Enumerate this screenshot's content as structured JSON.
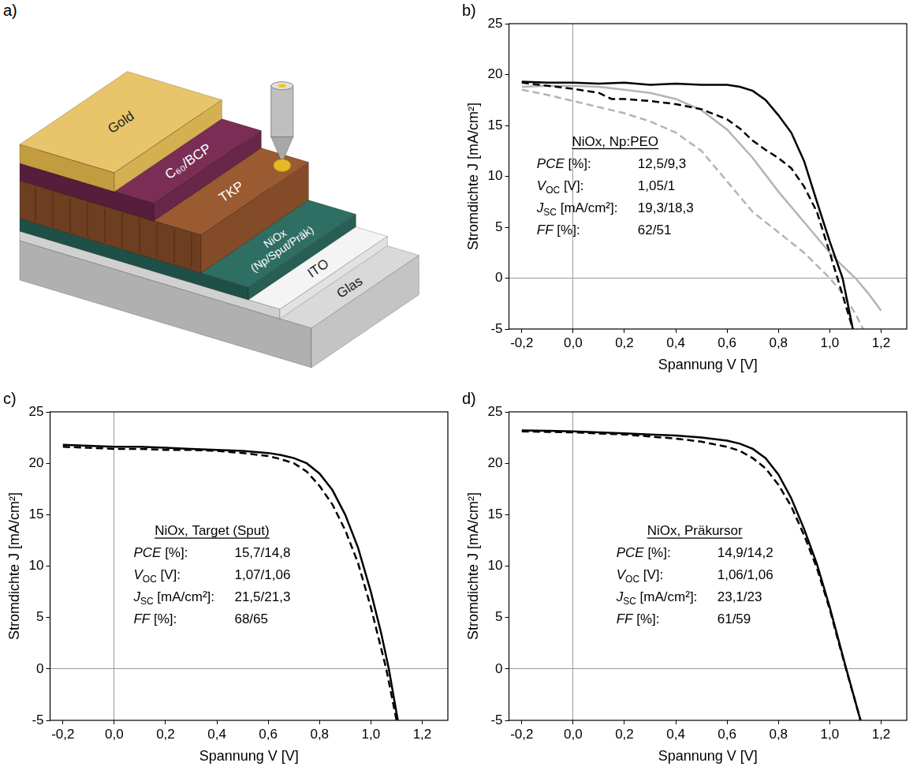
{
  "diagram": {
    "label": "a)",
    "layers": [
      {
        "text": [
          "Glas"
        ]
      },
      {
        "text": [
          "ITO"
        ]
      },
      {
        "text": [
          "NiOx",
          "(Np/Sput/Präk)"
        ]
      },
      {
        "text": [
          "TKP"
        ]
      },
      {
        "text": [
          "C₆₀/BCP"
        ]
      },
      {
        "text": [
          "Gold"
        ]
      }
    ]
  },
  "chart_data": [
    {
      "type": "line",
      "label": "b)",
      "x_label": "Spannung V [V]",
      "y_label": "Stromdichte J [mA/cm²]",
      "xlim": [
        -0.25,
        1.3
      ],
      "ylim": [
        -5,
        25
      ],
      "xticks": [
        {
          "value": -0.2,
          "label": "-0,2"
        },
        {
          "value": 0,
          "label": "0,0"
        },
        {
          "value": 0.2,
          "label": "0,2"
        },
        {
          "value": 0.4,
          "label": "0,4"
        },
        {
          "value": 0.6,
          "label": "0,6"
        },
        {
          "value": 0.8,
          "label": "0,8"
        },
        {
          "value": 1.0,
          "label": "1,0"
        },
        {
          "value": 1.2,
          "label": "1,2"
        }
      ],
      "yticks": [
        -5,
        0,
        5,
        10,
        15,
        20,
        25
      ],
      "grid": false,
      "annotation": {
        "title": "NiOx, Np:PEO",
        "rows": [
          {
            "symbol": "PCE",
            "unit": "[%]:",
            "value": "12,5/9,3"
          },
          {
            "symbol": "V",
            "sub": "OC",
            "unit": "[V]:",
            "value": "1,05/1"
          },
          {
            "symbol": "J",
            "sub": "SC",
            "unit": "[mA/cm²]:",
            "value": "19,3/18,3"
          },
          {
            "symbol": "FF",
            "unit": "[%]:",
            "value": "62/51"
          }
        ]
      },
      "series": [
        {
          "color": "#000000",
          "line_style": "solid",
          "x": [
            -0.2,
            -0.1,
            0,
            0.1,
            0.2,
            0.3,
            0.4,
            0.5,
            0.6,
            0.65,
            0.7,
            0.75,
            0.8,
            0.85,
            0.9,
            0.95,
            1.0,
            1.05,
            1.09
          ],
          "values": [
            19.3,
            19.2,
            19.2,
            19.1,
            19.2,
            19.0,
            19.1,
            19.0,
            19.0,
            18.8,
            18.4,
            17.5,
            16.0,
            14.3,
            11.5,
            7.5,
            3.6,
            0,
            -5
          ]
        },
        {
          "color": "#000000",
          "line_style": "dashed",
          "x": [
            -0.2,
            -0.1,
            0,
            0.1,
            0.15,
            0.2,
            0.3,
            0.4,
            0.5,
            0.6,
            0.65,
            0.7,
            0.75,
            0.8,
            0.85,
            0.9,
            0.95,
            1.0,
            1.03,
            1.06,
            1.09
          ],
          "values": [
            19.2,
            18.9,
            18.6,
            18.2,
            17.6,
            17.6,
            17.4,
            17.1,
            16.6,
            15.6,
            14.7,
            13.5,
            12.6,
            11.8,
            10.8,
            9.0,
            6.5,
            2.5,
            0,
            -2.5,
            -5
          ]
        },
        {
          "color": "#b4b4b4",
          "line_style": "solid",
          "x": [
            -0.2,
            -0.1,
            0,
            0.1,
            0.2,
            0.3,
            0.4,
            0.5,
            0.6,
            0.7,
            0.8,
            0.9,
            1.0,
            1.05,
            1.1,
            1.15,
            1.2
          ],
          "values": [
            18.8,
            18.9,
            18.9,
            18.8,
            18.5,
            18.2,
            17.6,
            16.5,
            14.6,
            11.8,
            8.5,
            5.5,
            2.5,
            1.2,
            0,
            -1.5,
            -3.2
          ]
        },
        {
          "color": "#b4b4b4",
          "line_style": "dashed",
          "x": [
            -0.2,
            -0.1,
            0,
            0.1,
            0.2,
            0.3,
            0.4,
            0.5,
            0.6,
            0.7,
            0.8,
            0.9,
            1.0,
            1.05,
            1.1,
            1.13
          ],
          "values": [
            18.5,
            18.0,
            17.4,
            16.8,
            16.2,
            15.4,
            14.3,
            12.5,
            9.5,
            6.5,
            4.5,
            2.5,
            0,
            -1.5,
            -3.5,
            -5
          ]
        }
      ]
    },
    {
      "type": "line",
      "label": "c)",
      "x_label": "Spannung V [V]",
      "y_label": "Stromdichte J [mA/cm²]",
      "xlim": [
        -0.25,
        1.3
      ],
      "ylim": [
        -5,
        25
      ],
      "xticks": [
        {
          "value": -0.2,
          "label": "-0,2"
        },
        {
          "value": 0,
          "label": "0,0"
        },
        {
          "value": 0.2,
          "label": "0,2"
        },
        {
          "value": 0.4,
          "label": "0,4"
        },
        {
          "value": 0.6,
          "label": "0,6"
        },
        {
          "value": 0.8,
          "label": "0,8"
        },
        {
          "value": 1.0,
          "label": "1,0"
        },
        {
          "value": 1.2,
          "label": "1,2"
        }
      ],
      "yticks": [
        -5,
        0,
        5,
        10,
        15,
        20,
        25
      ],
      "grid": false,
      "annotation": {
        "title": "NiOx, Target (Sput)",
        "rows": [
          {
            "symbol": "PCE",
            "unit": "[%]:",
            "value": "15,7/14,8"
          },
          {
            "symbol": "V",
            "sub": "OC",
            "unit": "[V]:",
            "value": "1,07/1,06"
          },
          {
            "symbol": "J",
            "sub": "SC",
            "unit": "[mA/cm²]:",
            "value": "21,5/21,3"
          },
          {
            "symbol": "FF",
            "unit": "[%]:",
            "value": "68/65"
          }
        ]
      },
      "series": [
        {
          "color": "#000000",
          "line_style": "solid",
          "x": [
            -0.2,
            -0.1,
            0,
            0.1,
            0.2,
            0.3,
            0.4,
            0.5,
            0.6,
            0.65,
            0.7,
            0.75,
            0.8,
            0.85,
            0.9,
            0.95,
            1.0,
            1.04,
            1.07,
            1.105
          ],
          "values": [
            21.8,
            21.7,
            21.6,
            21.6,
            21.5,
            21.4,
            21.3,
            21.2,
            21.0,
            20.8,
            20.5,
            20.0,
            19.0,
            17.4,
            15.0,
            11.8,
            7.5,
            3.5,
            0,
            -5
          ]
        },
        {
          "color": "#000000",
          "line_style": "dashed",
          "x": [
            -0.2,
            -0.1,
            0,
            0.1,
            0.2,
            0.3,
            0.4,
            0.5,
            0.6,
            0.65,
            0.7,
            0.75,
            0.8,
            0.85,
            0.9,
            0.95,
            1.0,
            1.03,
            1.06,
            1.1
          ],
          "values": [
            21.6,
            21.5,
            21.4,
            21.4,
            21.3,
            21.3,
            21.2,
            21.0,
            20.7,
            20.4,
            20.0,
            19.2,
            17.8,
            16.0,
            13.5,
            10.3,
            6.0,
            3.0,
            0,
            -5
          ]
        }
      ]
    },
    {
      "type": "line",
      "label": "d)",
      "x_label": "Spannung V [V]",
      "y_label": "Stromdichte J [mA/cm²]",
      "xlim": [
        -0.25,
        1.3
      ],
      "ylim": [
        -5,
        25
      ],
      "xticks": [
        {
          "value": -0.2,
          "label": "-0,2"
        },
        {
          "value": 0,
          "label": "0,0"
        },
        {
          "value": 0.2,
          "label": "0,2"
        },
        {
          "value": 0.4,
          "label": "0,4"
        },
        {
          "value": 0.6,
          "label": "0,6"
        },
        {
          "value": 0.8,
          "label": "0,8"
        },
        {
          "value": 1.0,
          "label": "1,0"
        },
        {
          "value": 1.2,
          "label": "1,2"
        }
      ],
      "yticks": [
        -5,
        0,
        5,
        10,
        15,
        20,
        25
      ],
      "grid": false,
      "annotation": {
        "title": "NiOx, Präkursor",
        "rows": [
          {
            "symbol": "PCE",
            "unit": "[%]:",
            "value": "14,9/14,2"
          },
          {
            "symbol": "V",
            "sub": "OC",
            "unit": "[V]:",
            "value": "1,06/1,06"
          },
          {
            "symbol": "J",
            "sub": "SC",
            "unit": "[mA/cm²]:",
            "value": "23,1/23"
          },
          {
            "symbol": "FF",
            "unit": "[%]:",
            "value": "61/59"
          }
        ]
      },
      "series": [
        {
          "color": "#000000",
          "line_style": "solid",
          "x": [
            -0.2,
            -0.1,
            0,
            0.1,
            0.2,
            0.3,
            0.4,
            0.5,
            0.6,
            0.65,
            0.7,
            0.75,
            0.8,
            0.85,
            0.9,
            0.95,
            1.0,
            1.03,
            1.06,
            1.12
          ],
          "values": [
            23.2,
            23.15,
            23.1,
            23.0,
            22.9,
            22.8,
            22.7,
            22.5,
            22.2,
            21.9,
            21.4,
            20.5,
            18.9,
            16.6,
            13.6,
            10.2,
            6.0,
            3.2,
            0.4,
            -5
          ]
        },
        {
          "color": "#000000",
          "line_style": "dashed",
          "x": [
            -0.2,
            -0.1,
            0,
            0.1,
            0.2,
            0.3,
            0.4,
            0.5,
            0.6,
            0.65,
            0.7,
            0.75,
            0.8,
            0.85,
            0.9,
            0.95,
            1.0,
            1.03,
            1.06,
            1.12
          ],
          "values": [
            23.1,
            23.05,
            23.0,
            22.9,
            22.8,
            22.6,
            22.4,
            22.1,
            21.6,
            21.2,
            20.5,
            19.5,
            17.9,
            15.8,
            13.0,
            9.8,
            5.8,
            3.0,
            0.3,
            -5
          ]
        }
      ]
    }
  ]
}
